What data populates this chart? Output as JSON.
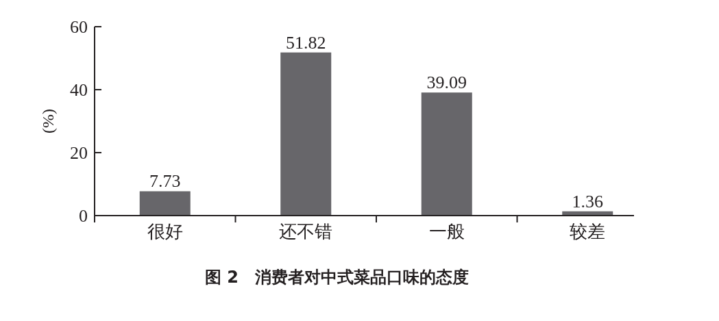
{
  "chart_data": {
    "type": "bar",
    "title": "图 2　消费者对中式菜品口味的态度",
    "ylabel": "(%)",
    "categories": [
      "很好",
      "还不错",
      "一般",
      "较差"
    ],
    "values": [
      7.73,
      51.82,
      39.09,
      1.36
    ],
    "color": "#67666a",
    "ylim": [
      0,
      60
    ],
    "yticks": [
      0,
      20,
      40,
      60
    ],
    "grid": false,
    "data_labels": true
  }
}
